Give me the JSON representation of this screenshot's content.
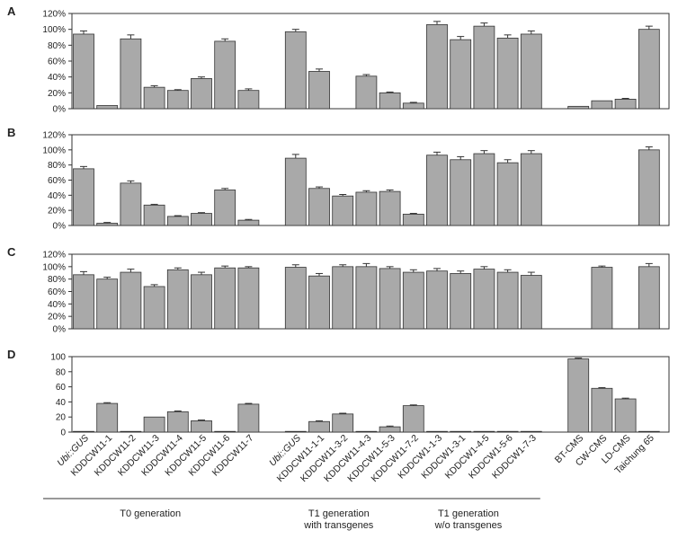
{
  "chart_data": {
    "type": "bar",
    "bar_color": "#a9a9a9",
    "categories": [
      {
        "label": "Ubi::GUS",
        "italic": true
      },
      {
        "label": "KDDCW11-1"
      },
      {
        "label": "KDDCW11-2"
      },
      {
        "label": "KDDCW11-3"
      },
      {
        "label": "KDDCW11-4"
      },
      {
        "label": "KDDCW11-5"
      },
      {
        "label": "KDDCW11-6"
      },
      {
        "label": "KDDCW11-7"
      },
      {
        "label": "Ubi::GUS",
        "italic": true
      },
      {
        "label": "KDDCW11-1-1"
      },
      {
        "label": "KDDCW11-3-2"
      },
      {
        "label": "KDDCW11-4-3"
      },
      {
        "label": "KDDCW11-5-3"
      },
      {
        "label": "KDDCW11-7-2"
      },
      {
        "label": "KDDCW1-1-3"
      },
      {
        "label": "KDDCW1-3-1"
      },
      {
        "label": "KDDCW1-4-5"
      },
      {
        "label": "KDDCW1-5-6"
      },
      {
        "label": "KDDCW1-7-3"
      },
      {
        "label": "BT-CMS"
      },
      {
        "label": "CW-CMS"
      },
      {
        "label": "LD-CMS"
      },
      {
        "label": "Taichung 65"
      }
    ],
    "panels": [
      {
        "letter": "A",
        "ylim": [
          0,
          120
        ],
        "ticks": [
          "0%",
          "20%",
          "40%",
          "60%",
          "80%",
          "100%",
          "120%"
        ],
        "values": [
          94,
          4,
          88,
          27,
          23,
          38,
          85,
          23,
          97,
          47,
          null,
          41,
          20,
          7,
          106,
          87,
          104,
          89,
          94,
          3,
          10,
          12,
          100
        ],
        "errors": [
          4,
          0,
          5,
          2,
          1,
          2,
          3,
          2,
          3,
          3,
          null,
          2,
          1,
          1,
          4,
          4,
          4,
          4,
          4,
          0,
          0,
          1,
          4
        ]
      },
      {
        "letter": "B",
        "ylim": [
          0,
          120
        ],
        "ticks": [
          "0%",
          "20%",
          "40%",
          "60%",
          "80%",
          "100%",
          "120%"
        ],
        "values": [
          75,
          3,
          56,
          27,
          12,
          16,
          47,
          7,
          89,
          49,
          39,
          44,
          45,
          15,
          93,
          87,
          95,
          83,
          95,
          null,
          null,
          null,
          100
        ],
        "errors": [
          3,
          1,
          3,
          1,
          1,
          1,
          2,
          1,
          5,
          2,
          2,
          2,
          2,
          1,
          4,
          4,
          4,
          4,
          4,
          null,
          null,
          null,
          4
        ]
      },
      {
        "letter": "C",
        "ylim": [
          0,
          120
        ],
        "ticks": [
          "0%",
          "20%",
          "40%",
          "60%",
          "80%",
          "100%",
          "120%"
        ],
        "values": [
          87,
          80,
          91,
          68,
          95,
          87,
          98,
          98,
          99,
          85,
          100,
          100,
          97,
          91,
          93,
          89,
          96,
          91,
          86,
          null,
          99,
          null,
          100
        ],
        "errors": [
          5,
          3,
          5,
          3,
          3,
          4,
          3,
          2,
          4,
          4,
          3,
          5,
          3,
          4,
          4,
          4,
          4,
          4,
          5,
          null,
          2,
          null,
          5
        ]
      },
      {
        "letter": "D",
        "ylim": [
          0,
          100
        ],
        "ticks": [
          "0",
          "20",
          "40",
          "60",
          "80",
          "100"
        ],
        "values": [
          0,
          38,
          0,
          20,
          27,
          15,
          0,
          37,
          0,
          14,
          24,
          0,
          7,
          35,
          0,
          0,
          0,
          0,
          0,
          97,
          58,
          44,
          0
        ],
        "errors": [
          0,
          1,
          0,
          0,
          1,
          1,
          0,
          1,
          0,
          1,
          1,
          0,
          1,
          1,
          0,
          0,
          0,
          0,
          0,
          1,
          1,
          1,
          0
        ]
      }
    ],
    "groups": [
      {
        "lines": [
          "T0 generation"
        ],
        "from": 0,
        "to": 7
      },
      {
        "lines": [
          "T1 generation",
          "with transgenes"
        ],
        "from": 8,
        "to": 13
      },
      {
        "lines": [
          "T1 generation",
          "w/o transgenes"
        ],
        "from": 14,
        "to": 18
      }
    ]
  }
}
